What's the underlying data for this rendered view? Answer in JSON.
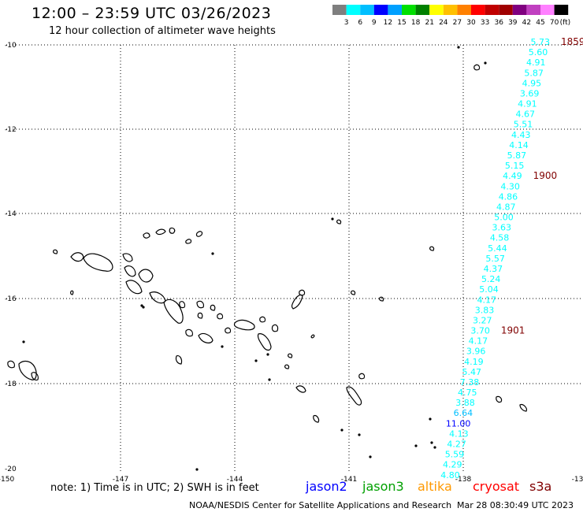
{
  "header": {
    "title": "12:00 – 23:59 UTC 03/26/2023",
    "subtitle": "12 hour collection of altimeter wave heights"
  },
  "colorbar": {
    "unit": "(ft)",
    "ticks": [
      "3",
      "6",
      "9",
      "12",
      "15",
      "18",
      "21",
      "24",
      "27",
      "30",
      "33",
      "36",
      "39",
      "42",
      "45",
      "70"
    ],
    "colors": [
      "#7f7f7f",
      "#00ffff",
      "#00bfff",
      "#0000ff",
      "#00a0ff",
      "#00e000",
      "#008000",
      "#ffff00",
      "#ffc000",
      "#ff8000",
      "#ff0000",
      "#c00000",
      "#a00000",
      "#800080",
      "#c040c0",
      "#ff80ff",
      "#000000"
    ]
  },
  "map": {
    "lat_labels": [
      "-10",
      "-12",
      "-14",
      "-16",
      "-18",
      "-20"
    ],
    "lon_labels": [
      "-150",
      "-147",
      "-144",
      "-141",
      "-138",
      "-13"
    ],
    "colors": {
      "land": "#000000",
      "grid": "#000000",
      "time_label": "#800000"
    }
  },
  "track": {
    "color_default": "#00ffff",
    "points": [
      {
        "v": "5.73",
        "c": "#00ffff"
      },
      {
        "v": "5.60",
        "c": "#00ffff"
      },
      {
        "v": "4.91",
        "c": "#00ffff"
      },
      {
        "v": "5.87",
        "c": "#00ffff"
      },
      {
        "v": "4.95",
        "c": "#00ffff"
      },
      {
        "v": "3.69",
        "c": "#00ffff"
      },
      {
        "v": "4.91",
        "c": "#00ffff"
      },
      {
        "v": "4.67",
        "c": "#00ffff"
      },
      {
        "v": "5.51",
        "c": "#00ffff"
      },
      {
        "v": "4.43",
        "c": "#00ffff"
      },
      {
        "v": "4.14",
        "c": "#00ffff"
      },
      {
        "v": "5.87",
        "c": "#00ffff"
      },
      {
        "v": "5.15",
        "c": "#00ffff"
      },
      {
        "v": "4.49",
        "c": "#00ffff"
      },
      {
        "v": "4.30",
        "c": "#00ffff"
      },
      {
        "v": "4.86",
        "c": "#00ffff"
      },
      {
        "v": "4.87",
        "c": "#00ffff"
      },
      {
        "v": "5.00",
        "c": "#00ffff"
      },
      {
        "v": "3.63",
        "c": "#00ffff"
      },
      {
        "v": "4.58",
        "c": "#00ffff"
      },
      {
        "v": "5.44",
        "c": "#00ffff"
      },
      {
        "v": "5.57",
        "c": "#00ffff"
      },
      {
        "v": "4.37",
        "c": "#00ffff"
      },
      {
        "v": "5.24",
        "c": "#00ffff"
      },
      {
        "v": "5.04",
        "c": "#00ffff"
      },
      {
        "v": "4.17",
        "c": "#00ffff"
      },
      {
        "v": "3.83",
        "c": "#00ffff"
      },
      {
        "v": "3.27",
        "c": "#00ffff"
      },
      {
        "v": "3.70",
        "c": "#00ffff"
      },
      {
        "v": "4.17",
        "c": "#00ffff"
      },
      {
        "v": "3.96",
        "c": "#00ffff"
      },
      {
        "v": "4.19",
        "c": "#00ffff"
      },
      {
        "v": "5.47",
        "c": "#00ffff"
      },
      {
        "v": "7.38",
        "c": "#00ffff"
      },
      {
        "v": "4.75",
        "c": "#00ffff"
      },
      {
        "v": "3.88",
        "c": "#00ffff"
      },
      {
        "v": "6.64",
        "c": "#00bfff"
      },
      {
        "v": "11.00",
        "c": "#0000ff"
      },
      {
        "v": "4.13",
        "c": "#00ffff"
      },
      {
        "v": "4.27",
        "c": "#00ffff"
      },
      {
        "v": "5.59",
        "c": "#00ffff"
      },
      {
        "v": "4.29",
        "c": "#00ffff"
      },
      {
        "v": "4.80",
        "c": "#00ffff"
      }
    ],
    "time_labels": [
      {
        "text": "1859",
        "after_index": 0
      },
      {
        "text": "1900",
        "after_index": 13
      },
      {
        "text": "1901",
        "after_index": 28
      }
    ]
  },
  "footer": {
    "note": "note:  1) Time is in UTC;  2) SWH is in feet",
    "satellites": [
      {
        "name": "jason2",
        "color": "#0000ff"
      },
      {
        "name": "jason3",
        "color": "#00a000"
      },
      {
        "name": "altika",
        "color": "#ff9900"
      },
      {
        "name": "cryosat",
        "color": "#ff0000"
      },
      {
        "name": "s3a",
        "color": "#800000"
      }
    ],
    "credit": "NOAA/NESDIS Center for Satellite Applications and Research",
    "timestamp": "Mar 28 08:30:49 UTC 2023"
  }
}
